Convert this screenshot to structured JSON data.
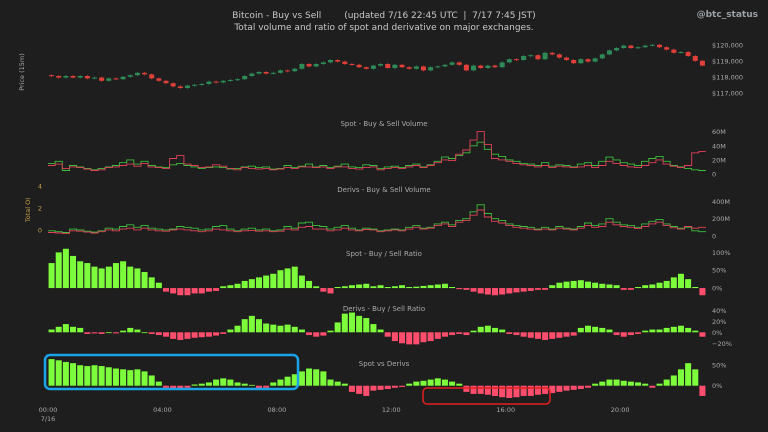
{
  "header": {
    "title": "Bitcoin - Buy vs Sell        (updated 7/16 22:45 UTC  |  7/17 7:45 JST)",
    "subtitle": "Total volume and ratio of spot and derivative on major exchanges.",
    "brand": "@btc_status"
  },
  "colors": {
    "background": "#1e1e1e",
    "buy": "#7cfc3a",
    "sell": "#ff4d6d",
    "candle_up": "#2e8b57",
    "candle_down": "#e0403a",
    "line_buy": "#3cbf3c",
    "line_sell": "#e0405a",
    "axis_text": "#aaaaaa",
    "oi_axis": "#c8a14a",
    "highlight_blue": "#1aa3e8",
    "highlight_red": "#e02020"
  },
  "x_axis": {
    "ticks": [
      {
        "label": "00:00",
        "sub": "7/16",
        "x": 0
      },
      {
        "label": "04:00",
        "sub": "",
        "x": 16
      },
      {
        "label": "08:00",
        "sub": "",
        "x": 32
      },
      {
        "label": "12:00",
        "sub": "",
        "x": 48
      },
      {
        "label": "16:00",
        "sub": "",
        "x": 64
      },
      {
        "label": "20:00",
        "sub": "",
        "x": 80
      }
    ]
  },
  "chart_data": [
    {
      "type": "candlestick",
      "ylabel": "Price (15m)",
      "ylim": [
        116800,
        120300
      ],
      "yticks": [
        {
          "v": 117000,
          "label": "$117,000"
        },
        {
          "v": 118000,
          "label": "$118,000"
        },
        {
          "v": 119000,
          "label": "$119,000"
        },
        {
          "v": 120000,
          "label": "$120,000"
        }
      ],
      "close": [
        118050,
        117950,
        118050,
        117950,
        118050,
        117900,
        117950,
        117750,
        117900,
        117850,
        118000,
        118100,
        118250,
        118150,
        117900,
        117750,
        117600,
        117400,
        117300,
        117450,
        117500,
        117550,
        117700,
        117650,
        117750,
        117800,
        117850,
        118050,
        118200,
        118300,
        118200,
        118250,
        118400,
        118350,
        118500,
        118800,
        118650,
        118800,
        118900,
        119050,
        118950,
        118800,
        118750,
        118600,
        118500,
        118700,
        118800,
        118550,
        118750,
        118600,
        118500,
        118650,
        118400,
        118600,
        118650,
        118750,
        118900,
        118750,
        118400,
        118700,
        118550,
        118700,
        118600,
        118900,
        119100,
        119050,
        119300,
        119350,
        119100,
        119500,
        119400,
        119200,
        119050,
        118850,
        119100,
        118950,
        119150,
        119400,
        119650,
        119800,
        119950,
        119800,
        119850,
        119950,
        120000,
        119850,
        119700,
        119500,
        119550,
        119300,
        119000,
        118700
      ]
    },
    {
      "type": "line",
      "title": "Spot - Buy & Sell Volume",
      "ylim": [
        0,
        68
      ],
      "yticks": [
        {
          "v": 0,
          "label": "0"
        },
        {
          "v": 20,
          "label": "20M"
        },
        {
          "v": 40,
          "label": "40M"
        },
        {
          "v": 60,
          "label": "60M"
        }
      ],
      "series": [
        {
          "values": [
            15,
            18,
            5,
            12,
            10,
            8,
            6,
            8,
            10,
            12,
            16,
            20,
            14,
            18,
            12,
            10,
            9,
            13,
            15,
            12,
            10,
            8,
            9,
            10,
            9,
            7,
            8,
            10,
            11,
            9,
            10,
            7,
            8,
            12,
            9,
            11,
            14,
            10,
            12,
            9,
            11,
            14,
            10,
            9,
            13,
            12,
            8,
            10,
            11,
            9,
            12,
            14,
            10,
            13,
            18,
            24,
            22,
            26,
            30,
            40,
            45,
            35,
            28,
            25,
            20,
            18,
            15,
            14,
            12,
            16,
            11,
            13,
            12,
            10,
            14,
            16,
            12,
            18,
            24,
            20,
            16,
            14,
            12,
            18,
            22,
            25,
            18,
            12,
            10,
            8,
            6,
            5
          ]
        },
        {
          "values": [
            12,
            14,
            8,
            10,
            9,
            7,
            5,
            6,
            9,
            10,
            12,
            14,
            11,
            15,
            10,
            9,
            8,
            22,
            26,
            14,
            12,
            9,
            10,
            13,
            11,
            8,
            6,
            9,
            8,
            7,
            8,
            6,
            7,
            9,
            8,
            10,
            10,
            9,
            10,
            8,
            10,
            10,
            8,
            7,
            9,
            10,
            6,
            8,
            9,
            8,
            10,
            12,
            9,
            12,
            16,
            20,
            19,
            28,
            34,
            48,
            60,
            42,
            22,
            20,
            18,
            15,
            13,
            12,
            10,
            12,
            9,
            11,
            10,
            9,
            10,
            12,
            9,
            12,
            18,
            15,
            12,
            10,
            9,
            12,
            16,
            20,
            14,
            11,
            9,
            12,
            30,
            32
          ]
        }
      ]
    },
    {
      "type": "line",
      "title": "Derivs - Buy & Sell Volume",
      "ylabel": "Total OI",
      "ylim": [
        0,
        520
      ],
      "yticks": [
        {
          "v": 0,
          "label": "0"
        },
        {
          "v": 200,
          "label": "200M"
        },
        {
          "v": 400,
          "label": "400M"
        }
      ],
      "left_ticks": [
        "0",
        "2",
        "4"
      ],
      "series": [
        {
          "values": [
            60,
            50,
            40,
            80,
            70,
            55,
            45,
            60,
            90,
            80,
            110,
            130,
            100,
            120,
            90,
            80,
            70,
            80,
            110,
            100,
            90,
            70,
            80,
            110,
            120,
            80,
            60,
            80,
            90,
            70,
            80,
            60,
            70,
            110,
            90,
            150,
            160,
            120,
            110,
            80,
            100,
            120,
            90,
            70,
            90,
            80,
            60,
            70,
            80,
            70,
            100,
            120,
            90,
            100,
            140,
            160,
            130,
            180,
            200,
            280,
            360,
            260,
            200,
            180,
            140,
            120,
            110,
            100,
            80,
            100,
            80,
            110,
            90,
            80,
            110,
            150,
            120,
            140,
            200,
            160,
            130,
            120,
            100,
            140,
            170,
            190,
            140,
            110,
            90,
            100,
            60,
            50
          ]
        },
        {
          "values": [
            40,
            35,
            30,
            60,
            55,
            45,
            35,
            50,
            70,
            60,
            80,
            90,
            70,
            90,
            70,
            60,
            55,
            70,
            80,
            70,
            60,
            50,
            60,
            80,
            70,
            60,
            50,
            60,
            65,
            55,
            60,
            50,
            55,
            80,
            70,
            100,
            110,
            80,
            80,
            60,
            70,
            90,
            70,
            60,
            75,
            70,
            50,
            60,
            70,
            60,
            80,
            100,
            80,
            90,
            120,
            140,
            110,
            160,
            180,
            240,
            300,
            220,
            170,
            150,
            120,
            100,
            90,
            80,
            70,
            80,
            70,
            90,
            80,
            70,
            90,
            120,
            100,
            110,
            160,
            130,
            110,
            100,
            85,
            110,
            140,
            160,
            120,
            95,
            80,
            110,
            90,
            100
          ]
        }
      ]
    },
    {
      "type": "bar",
      "title": "Spot - Buy / Sell Ratio",
      "ylim": [
        -25,
        115
      ],
      "yticks": [
        {
          "v": 0,
          "label": "0%"
        },
        {
          "v": 50,
          "label": "50%"
        },
        {
          "v": 100,
          "label": "100%"
        }
      ],
      "values": [
        70,
        100,
        110,
        90,
        75,
        70,
        60,
        55,
        60,
        70,
        75,
        60,
        55,
        45,
        30,
        15,
        -10,
        -15,
        -20,
        -20,
        -15,
        -15,
        -10,
        -8,
        5,
        8,
        12,
        20,
        25,
        30,
        35,
        40,
        50,
        55,
        60,
        35,
        20,
        5,
        -10,
        -15,
        3,
        5,
        8,
        10,
        12,
        5,
        8,
        3,
        5,
        8,
        3,
        4,
        6,
        8,
        10,
        12,
        3,
        -3,
        -5,
        -10,
        -15,
        -18,
        -20,
        -18,
        -15,
        -12,
        -10,
        -8,
        -5,
        -5,
        8,
        15,
        18,
        20,
        22,
        18,
        15,
        12,
        10,
        8,
        -5,
        -5,
        3,
        8,
        10,
        15,
        20,
        30,
        40,
        25,
        3,
        -20
      ]
    },
    {
      "type": "bar",
      "title": "Derivs - Buy / Sell Ratio",
      "ylim": [
        -25,
        48
      ],
      "yticks": [
        {
          "v": -20,
          "label": "−20%"
        },
        {
          "v": 0,
          "label": "0%"
        },
        {
          "v": 20,
          "label": "20%"
        },
        {
          "v": 40,
          "label": "40%"
        }
      ],
      "values": [
        5,
        10,
        15,
        10,
        8,
        -3,
        -2,
        -3,
        0,
        -2,
        3,
        8,
        5,
        0,
        -3,
        -5,
        -8,
        -12,
        -14,
        -12,
        -10,
        -9,
        -8,
        -6,
        -3,
        5,
        12,
        24,
        30,
        24,
        16,
        14,
        12,
        14,
        10,
        5,
        -5,
        -8,
        -6,
        3,
        18,
        34,
        36,
        30,
        26,
        15,
        5,
        -8,
        -16,
        -20,
        -22,
        -22,
        -18,
        -16,
        -12,
        -8,
        -5,
        -3,
        -5,
        3,
        10,
        12,
        8,
        5,
        -3,
        -5,
        -8,
        -10,
        -12,
        -14,
        -12,
        -10,
        -8,
        -6,
        8,
        12,
        10,
        8,
        5,
        -5,
        -8,
        -5,
        -3,
        3,
        5,
        5,
        8,
        10,
        12,
        8,
        3,
        -8
      ]
    },
    {
      "type": "bar",
      "title": "Spot vs Derivs",
      "ylim": [
        -30,
        75
      ],
      "yticks": [
        {
          "v": 0,
          "label": "0%"
        },
        {
          "v": 50,
          "label": "50%"
        }
      ],
      "values": [
        65,
        62,
        58,
        55,
        50,
        48,
        50,
        48,
        45,
        42,
        40,
        38,
        40,
        35,
        25,
        10,
        -5,
        -10,
        -8,
        -5,
        3,
        5,
        8,
        15,
        18,
        15,
        8,
        5,
        2,
        -10,
        -5,
        8,
        15,
        22,
        28,
        35,
        42,
        40,
        35,
        15,
        10,
        5,
        -15,
        -20,
        -25,
        -12,
        -10,
        -8,
        -5,
        -3,
        5,
        10,
        12,
        15,
        18,
        15,
        10,
        5,
        -15,
        -20,
        -20,
        -22,
        -25,
        -28,
        -30,
        -28,
        -25,
        -25,
        -22,
        -20,
        -18,
        -15,
        -12,
        -10,
        -8,
        -5,
        5,
        10,
        15,
        15,
        12,
        10,
        8,
        5,
        -5,
        5,
        15,
        25,
        40,
        55,
        40,
        -25
      ]
    }
  ]
}
